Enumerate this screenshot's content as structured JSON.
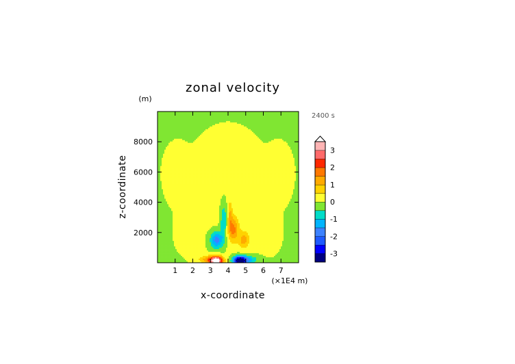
{
  "chart_data": {
    "type": "heatmap",
    "title": "zonal velocity",
    "xlabel": "x-coordinate",
    "ylabel": "z-coordinate",
    "y_unit": "(m)",
    "x_unit": "(×1E4 m)",
    "time_label": "2400 s",
    "xlim": [
      0,
      8
    ],
    "ylim": [
      0,
      10000
    ],
    "x_ticks": [
      1,
      2,
      3,
      4,
      5,
      6,
      7
    ],
    "x_tick_labels": [
      "1",
      "2",
      "3",
      "4",
      "5",
      "6",
      "7"
    ],
    "y_ticks": [
      2000,
      4000,
      6000,
      8000
    ],
    "y_tick_labels": [
      "2000",
      "4000",
      "6000",
      "8000"
    ],
    "colorbar": {
      "levels": [
        -3.5,
        -3,
        -2.5,
        -2,
        -1.5,
        -1,
        -0.5,
        0,
        0.5,
        1,
        1.5,
        2,
        2.5,
        3,
        3.5
      ],
      "tick_values": [
        -3,
        -2,
        -1,
        0,
        1,
        2,
        3
      ],
      "tick_labels": [
        "-3",
        "-2",
        "-1",
        "0",
        "1",
        "2",
        "3"
      ],
      "colors": [
        "#000080",
        "#0000ff",
        "#1e5aff",
        "#3c82ff",
        "#00b4ff",
        "#00dcc8",
        "#80e632",
        "#ffff32",
        "#ffd200",
        "#ffaa00",
        "#ff7800",
        "#ff2800",
        "#ff6a6a",
        "#ffb4b4"
      ]
    },
    "features": [
      {
        "kind": "positive",
        "x": 3.35,
        "z": 200,
        "value": 3.6
      },
      {
        "kind": "negative",
        "x": 4.65,
        "z": 200,
        "value": -3.6
      },
      {
        "kind": "negative",
        "x": 3.4,
        "z": 1500,
        "value": -1.8
      },
      {
        "kind": "positive",
        "x": 4.3,
        "z": 2200,
        "value": 1.6
      },
      {
        "kind": "positive",
        "x": 1.0,
        "z": 6000,
        "value": 0.3
      },
      {
        "kind": "positive",
        "x": 7.0,
        "z": 6000,
        "value": 0.3
      }
    ]
  }
}
